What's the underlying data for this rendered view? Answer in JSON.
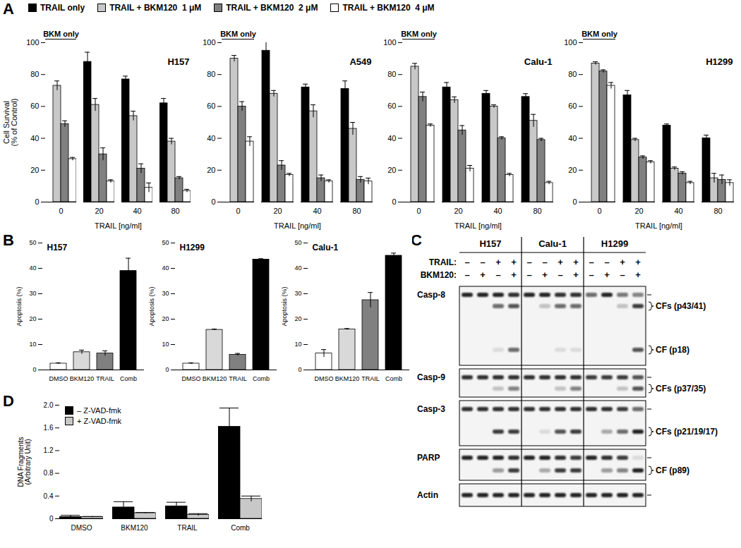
{
  "panel_labels": [
    "A",
    "B",
    "C",
    "D"
  ],
  "chart_data": [
    {
      "type": "bar",
      "title": "H157",
      "categories": [
        "0",
        "20",
        "40",
        "80"
      ],
      "x_label": "TRAIL [ng/ml]",
      "y_label": "Cell Survival\n(% of Control)",
      "ylim": [
        0,
        100
      ],
      "yticks": [
        0,
        20,
        40,
        60,
        80,
        100
      ],
      "annotation": "BKM only",
      "legend": "top",
      "series": [
        {
          "name": "TRAIL only",
          "color": "#000000",
          "values": [
            null,
            88,
            77,
            62
          ],
          "errors": [
            null,
            6,
            2,
            3
          ]
        },
        {
          "name": "TRAIL + BKM120  1 μM",
          "color": "#c8c8c8",
          "values": [
            73,
            61,
            54,
            38
          ],
          "errors": [
            3,
            4,
            3,
            2
          ]
        },
        {
          "name": "TRAIL + BKM120  2 μM",
          "color": "#808080",
          "values": [
            49,
            30,
            21,
            15
          ],
          "errors": [
            2,
            4,
            3,
            1
          ]
        },
        {
          "name": "TRAIL + BKM120  4 μM",
          "color": "#ffffff",
          "values": [
            27,
            13,
            9,
            7
          ],
          "errors": [
            1,
            1,
            3,
            1
          ]
        }
      ]
    },
    {
      "type": "bar",
      "title": "A549",
      "categories": [
        "0",
        "20",
        "40",
        "80"
      ],
      "x_label": "TRAIL [ng/ml]",
      "ylim": [
        0,
        100
      ],
      "yticks": [
        0,
        20,
        40,
        60,
        80,
        100
      ],
      "annotation": "BKM only",
      "series": [
        {
          "name": "TRAIL only",
          "color": "#000000",
          "values": [
            null,
            95,
            72,
            71
          ],
          "errors": [
            null,
            8,
            2,
            5
          ]
        },
        {
          "name": "TRAIL + BKM120  1 μM",
          "color": "#c8c8c8",
          "values": [
            90,
            68,
            57,
            46
          ],
          "errors": [
            2,
            2,
            4,
            4
          ]
        },
        {
          "name": "TRAIL + BKM120  2 μM",
          "color": "#808080",
          "values": [
            60,
            23,
            15,
            14
          ],
          "errors": [
            3,
            3,
            2,
            2
          ]
        },
        {
          "name": "TRAIL + BKM120  4 μM",
          "color": "#ffffff",
          "values": [
            38,
            17,
            13,
            13
          ],
          "errors": [
            3,
            1,
            1,
            2
          ]
        }
      ]
    },
    {
      "type": "bar",
      "title": "Calu-1",
      "categories": [
        "0",
        "20",
        "40",
        "80"
      ],
      "x_label": "TRAIL [ng/ml]",
      "ylim": [
        0,
        100
      ],
      "yticks": [
        0,
        20,
        40,
        60,
        80,
        100
      ],
      "annotation": "BKM only",
      "series": [
        {
          "name": "TRAIL only",
          "color": "#000000",
          "values": [
            null,
            72,
            68,
            66
          ],
          "errors": [
            null,
            3,
            2,
            2
          ]
        },
        {
          "name": "TRAIL + BKM120  1 μM",
          "color": "#c8c8c8",
          "values": [
            85,
            64,
            60,
            51
          ],
          "errors": [
            2,
            2,
            1,
            4
          ]
        },
        {
          "name": "TRAIL + BKM120  2 μM",
          "color": "#808080",
          "values": [
            66,
            45,
            40,
            39
          ],
          "errors": [
            3,
            3,
            1,
            1
          ]
        },
        {
          "name": "TRAIL + BKM120  4 μM",
          "color": "#ffffff",
          "values": [
            48,
            21,
            17,
            12
          ],
          "errors": [
            1,
            2,
            1,
            1
          ]
        }
      ]
    },
    {
      "type": "bar",
      "title": "H1299",
      "categories": [
        "0",
        "20",
        "40",
        "80"
      ],
      "x_label": "TRAIL [ng/ml]",
      "ylim": [
        0,
        100
      ],
      "yticks": [
        0,
        20,
        40,
        60,
        80,
        100
      ],
      "annotation": "BKM only",
      "series": [
        {
          "name": "TRAIL only",
          "color": "#000000",
          "values": [
            null,
            67,
            48,
            40
          ],
          "errors": [
            null,
            3,
            1,
            2
          ]
        },
        {
          "name": "TRAIL + BKM120  1 μM",
          "color": "#c8c8c8",
          "values": [
            87,
            39,
            21,
            15
          ],
          "errors": [
            1,
            1,
            1,
            3
          ]
        },
        {
          "name": "TRAIL + BKM120  2 μM",
          "color": "#808080",
          "values": [
            82,
            28,
            18,
            14
          ],
          "errors": [
            1,
            1,
            1,
            3
          ]
        },
        {
          "name": "TRAIL + BKM120  4 μM",
          "color": "#ffffff",
          "values": [
            73,
            25,
            12,
            12
          ],
          "errors": [
            2,
            1,
            1,
            2
          ]
        }
      ]
    },
    {
      "type": "bar",
      "title": "H157",
      "categories": [
        "DMSO",
        "BKM120",
        "TRAIL",
        "Comb"
      ],
      "y_label": "Apoptosis (%)",
      "ylim": [
        0,
        50
      ],
      "yticks": [
        0,
        10,
        20,
        30,
        40,
        50
      ],
      "values": [
        2.5,
        7,
        6.5,
        39
      ],
      "errors": [
        0.3,
        0.8,
        1,
        5
      ],
      "colors": [
        "#ffffff",
        "#d9d9d9",
        "#808080",
        "#000000"
      ]
    },
    {
      "type": "bar",
      "title": "H1299",
      "categories": [
        "DMSO",
        "BKM120",
        "TRAIL",
        "Comb"
      ],
      "y_label": "Apoptosis (%)",
      "ylim": [
        0,
        50
      ],
      "yticks": [
        0,
        10,
        20,
        30,
        40,
        50
      ],
      "values": [
        2.5,
        15.8,
        6,
        43.5
      ],
      "errors": [
        0.3,
        0.3,
        0.5,
        0.3
      ],
      "colors": [
        "#ffffff",
        "#d9d9d9",
        "#808080",
        "#000000"
      ]
    },
    {
      "type": "bar",
      "title": "Calu-1",
      "categories": [
        "DMSO",
        "BKM120",
        "TRAIL",
        "Comb"
      ],
      "y_label": "Apoptosis (%)",
      "ylim": [
        0,
        50
      ],
      "yticks": [
        0,
        10,
        20,
        30,
        40,
        50
      ],
      "values": [
        6.5,
        16,
        27.5,
        45
      ],
      "errors": [
        1.5,
        0.3,
        3,
        1
      ],
      "colors": [
        "#ffffff",
        "#d9d9d9",
        "#808080",
        "#000000"
      ]
    },
    {
      "type": "bar",
      "categories": [
        "DMSO",
        "BKM120",
        "TRAIL",
        "Comb"
      ],
      "y_label": "DNA Fragments\n(Arbitrary Unit)",
      "ylim": [
        0,
        2
      ],
      "yticks": [
        0,
        0.4,
        0.8,
        1.2,
        1.6,
        {
          "value": 2,
          "label": "2.0"
        }
      ],
      "legend": "top-left",
      "series": [
        {
          "name": "– Z-VAD-fmk",
          "color": "#000000",
          "values": [
            0.03,
            0.2,
            0.22,
            1.62
          ],
          "errors": [
            0.03,
            0.1,
            0.07,
            0.33
          ]
        },
        {
          "name": "+ Z-VAD-fmk",
          "color": "#c8c8c8",
          "values": [
            0.03,
            0.1,
            0.07,
            0.35
          ],
          "errors": [
            0.01,
            0.01,
            0.02,
            0.05
          ]
        }
      ]
    }
  ],
  "blot": {
    "cell_lines": [
      "H157",
      "Calu-1",
      "H1299"
    ],
    "treatments": [
      {
        "name": "TRAIL:",
        "signs": [
          "–",
          "–",
          "+",
          "+"
        ]
      },
      {
        "name": "BKM120:",
        "signs": [
          "–",
          "+",
          "–",
          "+"
        ]
      }
    ],
    "rows": [
      {
        "name": "Casp-8",
        "full_length": [
          0.9,
          0.9,
          0.9,
          0.85,
          0.9,
          0.9,
          0.85,
          0.85,
          0.6,
          0.9,
          0.55,
          0.5
        ],
        "fragments": [
          {
            "label": "CFs (p43/41)",
            "intensity": [
              0,
              0,
              0.6,
              0.7,
              0,
              0.2,
              0.6,
              0.6,
              0,
              0,
              0.2,
              0.8
            ]
          },
          {
            "label": "CF (p18)",
            "intensity": [
              0,
              0,
              0.1,
              0.6,
              0,
              0,
              0.1,
              0.1,
              0,
              0,
              0,
              0.7
            ]
          }
        ]
      },
      {
        "name": "Casp-9",
        "full_length": [
          0.85,
          0.85,
          0.85,
          0.85,
          0.85,
          0.85,
          0.85,
          0.85,
          0.8,
          0.8,
          0.8,
          0.7
        ],
        "fragments": [
          {
            "label": "CFs (p37/35)",
            "intensity": [
              0,
              0,
              0.2,
              0.5,
              0,
              0,
              0.2,
              0.5,
              0,
              0,
              0.2,
              0.7
            ]
          }
        ]
      },
      {
        "name": "Casp-3",
        "full_length": [
          0.85,
          0.85,
          0.85,
          0.85,
          0.85,
          0.85,
          0.85,
          0.85,
          0.85,
          0.85,
          0.8,
          0.6
        ],
        "fragments": [
          {
            "label": "CFs (p21/19/17)",
            "intensity": [
              0,
              0,
              0.8,
              0.8,
              0,
              0.1,
              0.7,
              0.8,
              0,
              0.3,
              0.6,
              0.9
            ]
          }
        ]
      },
      {
        "name": "PARP",
        "full_length": [
          0.9,
          0.9,
          0.9,
          0.85,
          0.9,
          0.9,
          0.85,
          0.8,
          0.9,
          0.85,
          0.8,
          0.1
        ],
        "fragments": [
          {
            "label": "CF (p89)",
            "intensity": [
              0,
              0,
              0.4,
              0.8,
              0,
              0.3,
              0.8,
              0.8,
              0,
              0.4,
              0.5,
              0.9
            ]
          }
        ]
      },
      {
        "name": "Actin",
        "full_length": [
          0.9,
          0.9,
          0.9,
          0.9,
          0.9,
          0.9,
          0.9,
          0.9,
          0.9,
          0.9,
          0.9,
          0.9
        ],
        "fragments": []
      }
    ]
  }
}
